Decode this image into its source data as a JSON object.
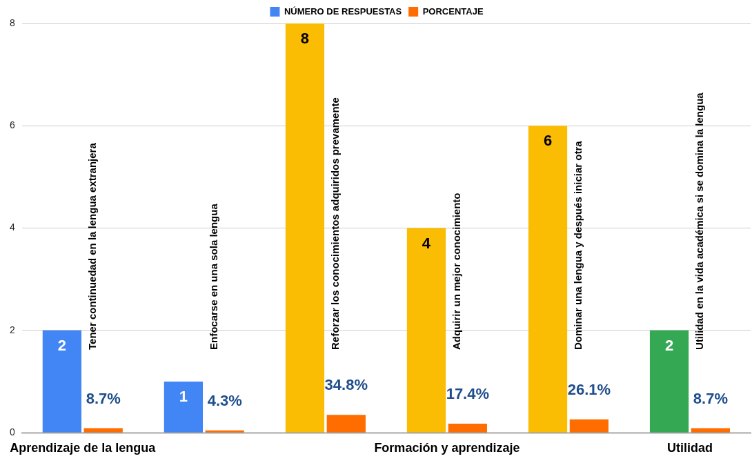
{
  "chart_data": {
    "type": "bar",
    "categories": [
      "Tener continuedad en la lengua extranjera",
      "Enfocarse en una sola lengua",
      "Reforzar los conocimientos adquiridos prevamente",
      "Adquirir un mejor conocimiento",
      "Dominar una lengua y después iniciar otra",
      "Utilidad en la vida académica si se domina la lengua"
    ],
    "series": [
      {
        "name": "NÚMERO DE RESPUESTAS",
        "color": "#4285f4",
        "colors": [
          "#4285f4",
          "#4285f4",
          "#fbbc04",
          "#fbbc04",
          "#fbbc04",
          "#34a853"
        ],
        "values": [
          2,
          1,
          8,
          4,
          6,
          2
        ],
        "value_labels": [
          "2",
          "1",
          "8",
          "4",
          "6",
          "2"
        ]
      },
      {
        "name": "PORCENTAJE",
        "color": "#ff6d01",
        "values": [
          0.087,
          0.043,
          0.348,
          0.174,
          0.261,
          0.087
        ],
        "value_labels": [
          "8.7%",
          "4.3%",
          "34.8%",
          "17.4%",
          "26.1%",
          "8.7%"
        ]
      }
    ],
    "ylim": [
      0,
      8
    ],
    "yticks": [
      0,
      2,
      4,
      6,
      8
    ],
    "grid": "y",
    "legend": "top",
    "annotations": [
      "Aprendizaje de la lengua",
      "Formación y aprendizaje",
      "Utilidad"
    ]
  }
}
